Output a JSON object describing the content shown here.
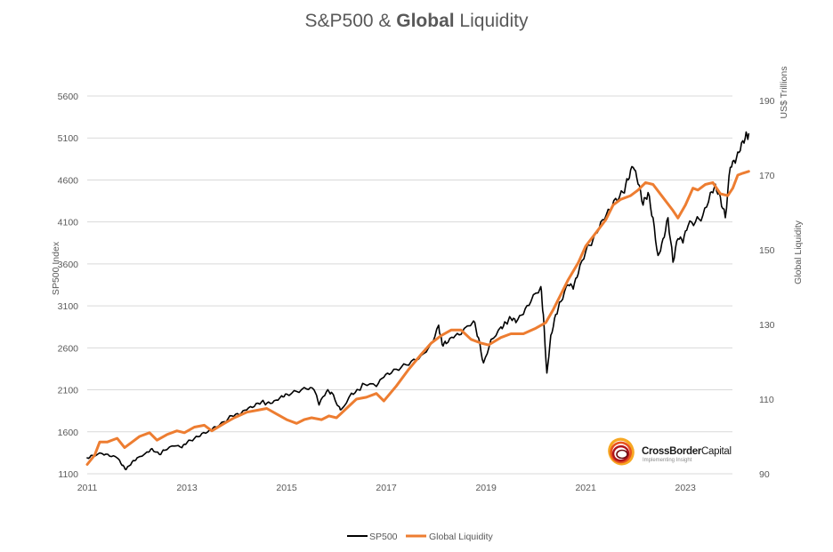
{
  "chart_data": {
    "type": "line",
    "title": "S&P500 & Global Liquidity",
    "title_parts": [
      {
        "text": "S&P500 & ",
        "bold": false
      },
      {
        "text": "Global",
        "bold": true
      },
      {
        "text": " Liquidity",
        "bold": false
      }
    ],
    "xlabel": "",
    "xlim": [
      2011.0,
      2024.3
    ],
    "x_ticks": [
      2011,
      2013,
      2015,
      2017,
      2019,
      2021,
      2023
    ],
    "x_tick_labels": [
      "2011",
      "2013",
      "2015",
      "2017",
      "2019",
      "2021",
      "2023"
    ],
    "y_left": {
      "label": "SP500 Index",
      "lim": [
        1100,
        5600
      ],
      "ticks": [
        1100,
        1600,
        2100,
        2600,
        3100,
        3600,
        4100,
        4600,
        5100,
        5600
      ],
      "tick_labels": [
        "1100",
        "1600",
        "2100",
        "2600",
        "3100",
        "3600",
        "4100",
        "4600",
        "5100",
        "5600"
      ]
    },
    "y_right": {
      "label": "Global Liquidity",
      "unit_label": "US$ Trillions",
      "lim": [
        90,
        190
      ],
      "ticks": [
        90,
        110,
        130,
        150,
        170,
        190
      ],
      "tick_labels": [
        "90",
        "110",
        "130",
        "150",
        "170",
        "190"
      ]
    },
    "grid": true,
    "legend_position": "bottom",
    "series": [
      {
        "name": "SP500",
        "axis": "left",
        "color": "#000000",
        "x": [
          2011.0,
          2011.1,
          2011.3,
          2011.45,
          2011.6,
          2011.7,
          2011.78,
          2011.9,
          2012.0,
          2012.2,
          2012.3,
          2012.45,
          2012.55,
          2012.75,
          2012.9,
          2013.0,
          2013.15,
          2013.3,
          2013.45,
          2013.55,
          2013.75,
          2013.9,
          2014.05,
          2014.2,
          2014.35,
          2014.5,
          2014.6,
          2014.75,
          2014.9,
          2015.0,
          2015.2,
          2015.4,
          2015.55,
          2015.65,
          2015.8,
          2015.9,
          2016.05,
          2016.1,
          2016.3,
          2016.45,
          2016.55,
          2016.8,
          2016.95,
          2017.1,
          2017.3,
          2017.5,
          2017.7,
          2017.9,
          2018.05,
          2018.12,
          2018.2,
          2018.35,
          2018.5,
          2018.75,
          2018.85,
          2018.95,
          2019.1,
          2019.3,
          2019.4,
          2019.5,
          2019.6,
          2019.75,
          2019.9,
          2020.1,
          2020.15,
          2020.22,
          2020.3,
          2020.4,
          2020.5,
          2020.65,
          2020.75,
          2020.85,
          2021.0,
          2021.15,
          2021.3,
          2021.45,
          2021.6,
          2021.75,
          2021.85,
          2021.95,
          2022.05,
          2022.15,
          2022.25,
          2022.35,
          2022.45,
          2022.55,
          2022.65,
          2022.75,
          2022.85,
          2022.95,
          2023.05,
          2023.2,
          2023.35,
          2023.5,
          2023.6,
          2023.7,
          2023.8,
          2023.9,
          2024.0,
          2024.1,
          2024.2,
          2024.27
        ],
        "values": [
          1290,
          1320,
          1340,
          1310,
          1290,
          1200,
          1150,
          1240,
          1290,
          1360,
          1400,
          1330,
          1380,
          1430,
          1410,
          1470,
          1520,
          1580,
          1620,
          1660,
          1720,
          1790,
          1800,
          1860,
          1900,
          1960,
          1940,
          1970,
          2030,
          2050,
          2080,
          2110,
          2100,
          1920,
          2080,
          2070,
          1900,
          1870,
          2060,
          2100,
          2170,
          2140,
          2250,
          2300,
          2370,
          2440,
          2510,
          2650,
          2870,
          2640,
          2650,
          2720,
          2760,
          2920,
          2720,
          2420,
          2700,
          2850,
          2900,
          2950,
          2900,
          3000,
          3150,
          3330,
          3000,
          2300,
          2750,
          3000,
          3150,
          3350,
          3300,
          3480,
          3750,
          3900,
          4100,
          4250,
          4380,
          4450,
          4600,
          4750,
          4550,
          4300,
          4450,
          4150,
          3700,
          3900,
          4150,
          3620,
          3900,
          3850,
          4050,
          4100,
          4180,
          4450,
          4550,
          4400,
          4150,
          4750,
          4800,
          4950,
          5100,
          5150
        ]
      },
      {
        "name": "Global Liquidity",
        "axis": "right",
        "color": "#ED7D31",
        "x": [
          2011.0,
          2011.15,
          2011.25,
          2011.4,
          2011.6,
          2011.75,
          2011.9,
          2012.05,
          2012.25,
          2012.4,
          2012.6,
          2012.8,
          2012.95,
          2013.15,
          2013.35,
          2013.5,
          2013.75,
          2013.95,
          2014.2,
          2014.4,
          2014.6,
          2014.8,
          2015.0,
          2015.2,
          2015.35,
          2015.5,
          2015.7,
          2015.85,
          2016.0,
          2016.2,
          2016.4,
          2016.6,
          2016.8,
          2016.95,
          2017.2,
          2017.45,
          2017.7,
          2017.9,
          2018.1,
          2018.3,
          2018.5,
          2018.7,
          2018.9,
          2019.05,
          2019.3,
          2019.5,
          2019.75,
          2020.0,
          2020.2,
          2020.35,
          2020.5,
          2020.65,
          2020.85,
          2021.0,
          2021.2,
          2021.4,
          2021.55,
          2021.7,
          2021.9,
          2022.05,
          2022.2,
          2022.35,
          2022.55,
          2022.75,
          2022.85,
          2023.0,
          2023.15,
          2023.25,
          2023.4,
          2023.55,
          2023.7,
          2023.85,
          2023.95,
          2024.05,
          2024.15,
          2024.27
        ],
        "values": [
          92.5,
          95.0,
          98.5,
          98.5,
          99.5,
          97.0,
          98.5,
          100.0,
          101.0,
          99.0,
          100.5,
          101.5,
          101.0,
          102.5,
          103.0,
          101.5,
          103.5,
          105.0,
          106.5,
          107.0,
          107.5,
          106.0,
          104.5,
          103.5,
          104.5,
          105.0,
          104.5,
          105.5,
          105.0,
          107.5,
          110.0,
          110.5,
          111.5,
          109.5,
          113.5,
          118.0,
          122.0,
          125.0,
          127.0,
          128.5,
          128.5,
          126.0,
          125.0,
          124.5,
          126.5,
          127.5,
          127.5,
          129.0,
          130.5,
          134.0,
          138.0,
          142.0,
          146.5,
          151.0,
          154.5,
          158.0,
          162.0,
          163.5,
          164.5,
          166.0,
          168.0,
          167.5,
          164.0,
          160.5,
          158.5,
          162.0,
          166.5,
          166.0,
          167.5,
          168.0,
          165.0,
          164.5,
          166.5,
          170.0,
          170.5,
          171.0
        ]
      }
    ],
    "legend": [
      {
        "name": "SP500",
        "color": "#000000"
      },
      {
        "name": "Global Liquidity",
        "color": "#ED7D31"
      }
    ],
    "logo": {
      "brand_bold": "CrossBorder",
      "brand_regular": "Capital",
      "tagline": "Implementing Insight"
    }
  }
}
